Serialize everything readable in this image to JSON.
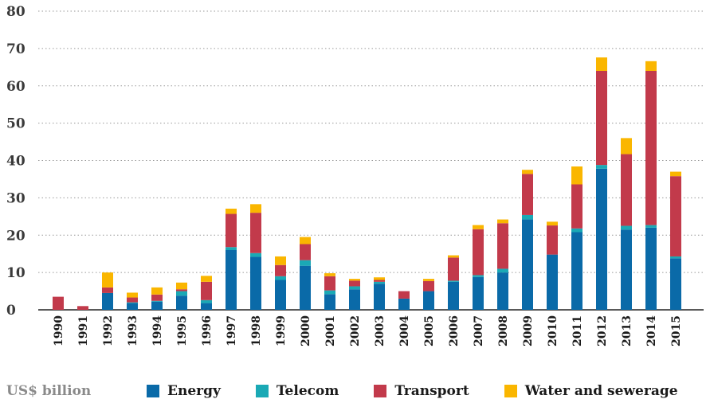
{
  "chart_data": {
    "type": "bar",
    "stacked": true,
    "title": "",
    "xlabel": "",
    "ylabel": "",
    "unit_label": "US$ billion",
    "ylim": [
      0,
      80
    ],
    "yticks": [
      0,
      10,
      20,
      30,
      40,
      50,
      60,
      70,
      80
    ],
    "grid": "horizontal dotted",
    "legend_position": "bottom",
    "categories": [
      "1990",
      "1991",
      "1992",
      "1993",
      "1994",
      "1995",
      "1996",
      "1997",
      "1998",
      "1999",
      "2000",
      "2001",
      "2002",
      "2003",
      "2004",
      "2005",
      "2006",
      "2007",
      "2008",
      "2009",
      "2010",
      "2011",
      "2012",
      "2013",
      "2014",
      "2015"
    ],
    "series": [
      {
        "name": "Energy",
        "color": "#0a6aa8",
        "values": [
          0,
          0,
          4.5,
          1.8,
          2.2,
          3.8,
          1.8,
          16.0,
          14.2,
          8.0,
          11.8,
          4.2,
          5.5,
          7.0,
          3.0,
          5.0,
          7.5,
          8.8,
          10.0,
          24.2,
          14.8,
          20.8,
          37.8,
          21.5,
          22.0,
          13.8
        ]
      },
      {
        "name": "Telecom",
        "color": "#1aa9b5",
        "values": [
          0,
          0,
          0,
          0.2,
          0.2,
          1.2,
          0.8,
          0.8,
          1.0,
          1.0,
          1.5,
          1.0,
          0.8,
          0.5,
          0,
          0,
          0.3,
          0.5,
          1.0,
          1.2,
          0,
          1.0,
          1.0,
          1.0,
          0.7,
          0.5
        ]
      },
      {
        "name": "Transport",
        "color": "#c23a4b",
        "values": [
          3.5,
          1.0,
          1.5,
          1.3,
          1.7,
          0.5,
          4.9,
          8.9,
          10.8,
          3.0,
          4.3,
          3.8,
          1.5,
          0.5,
          2.0,
          2.7,
          6.2,
          12.3,
          12.2,
          11.0,
          7.8,
          11.8,
          25.2,
          19.2,
          41.3,
          21.5
        ]
      },
      {
        "name": "Water and sewerage",
        "color": "#fab600",
        "values": [
          0,
          0,
          4.0,
          1.3,
          1.9,
          1.8,
          1.6,
          1.4,
          2.3,
          2.3,
          1.9,
          0.8,
          0.5,
          0.7,
          0,
          0.6,
          0.6,
          1.1,
          1.0,
          1.1,
          1.0,
          4.8,
          3.6,
          4.3,
          2.6,
          1.2
        ]
      }
    ]
  }
}
